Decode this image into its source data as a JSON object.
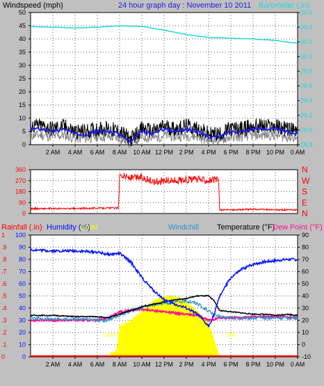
{
  "colors": {
    "bg": "#c0c0c0",
    "plot_bg": "#ffffff",
    "grid_dot": "#555555",
    "windspeed": "#000000",
    "gust": "#808080",
    "wind_avg": "#1e1ee6",
    "barometer": "#20d8d8",
    "direction": "#ff0000",
    "rainfall": "#ff0000",
    "humidity": "#0010ff",
    "solar": "#ffff00",
    "windchill": "#2a8fd0",
    "temperature": "#000000",
    "dew_point": "#ff1493"
  },
  "top_panel": {
    "title_windspeed": "Windspeed (mph)",
    "title_graph": "24 hour graph day : November 10 2011",
    "title_barometer": "Barometer (.in)"
  },
  "mid_panel": {
    "compass_labels": [
      "N",
      "W",
      "S",
      "E",
      "N"
    ]
  },
  "bottom_panel": {
    "label_rainfall": "Rainfall (.in)",
    "label_humidity": "Humidity (%)",
    "label_solar": "Solar",
    "label_windchill": "Windchill",
    "label_temperature": "Temperature (°F)",
    "label_dewpoint": "Dew Point (°F)",
    "sunrise_label": "Sun Rise",
    "sunset_label": "Set"
  },
  "chart_data": [
    {
      "type": "line",
      "title": "24 hour graph day : November 10 2011",
      "ylabel": "Windspeed (mph)",
      "y2label": "Barometer (.in)",
      "x_ticks": [
        "2 AM",
        "4 AM",
        "6 AM",
        "8 AM",
        "10 AM",
        "12 PM",
        "2 PM",
        "4 PM",
        "6 PM",
        "8 PM",
        "10 PM",
        "0 AM"
      ],
      "ylim": [
        0,
        50
      ],
      "y_ticks": [
        0,
        5,
        10,
        15,
        20,
        25,
        30,
        35,
        40,
        45,
        50
      ],
      "y2lim": [
        28.8,
        30.6
      ],
      "y2_ticks": [
        28.8,
        29.0,
        29.2,
        29.4,
        29.6,
        29.8,
        30.0,
        30.2,
        30.4,
        30.6
      ],
      "grid": true,
      "series": [
        {
          "name": "Windspeed",
          "x": [
            0,
            1,
            2,
            3,
            4,
            5,
            6,
            7,
            8,
            9,
            10,
            11,
            12,
            13,
            14,
            15,
            16,
            17,
            18,
            19,
            20,
            21,
            22,
            23,
            24
          ],
          "values": [
            6,
            6,
            5,
            6,
            4,
            4,
            5,
            5,
            4,
            1,
            5,
            4,
            6,
            5,
            6,
            5,
            3,
            3,
            5,
            5,
            6,
            6,
            6,
            5,
            4
          ]
        },
        {
          "name": "Barometer",
          "x": [
            0,
            2,
            4,
            6,
            8,
            10,
            12,
            14,
            16,
            18,
            20,
            22,
            24
          ],
          "values": [
            30.41,
            30.4,
            30.39,
            30.4,
            30.42,
            30.41,
            30.36,
            30.3,
            30.26,
            30.25,
            30.24,
            30.22,
            30.18
          ]
        }
      ]
    },
    {
      "type": "line",
      "ylabel": "Wind direction",
      "ylim": [
        0,
        360
      ],
      "y_ticks": [
        0,
        90,
        180,
        270,
        360
      ],
      "grid": true,
      "series": [
        {
          "name": "Wind direction",
          "x": [
            0,
            2,
            4,
            6,
            7.9,
            8.0,
            9,
            10,
            11,
            12,
            13,
            14,
            15,
            16,
            16.9,
            17.0,
            18,
            20,
            22,
            24
          ],
          "values": [
            40,
            40,
            40,
            45,
            45,
            320,
            290,
            300,
            260,
            270,
            270,
            280,
            280,
            275,
            275,
            30,
            30,
            35,
            30,
            30
          ]
        }
      ]
    },
    {
      "type": "line",
      "x_ticks": [
        "2 AM",
        "4 AM",
        "6 AM",
        "8 AM",
        "10 AM",
        "12 PM",
        "2 PM",
        "4 PM",
        "6 PM",
        "8 PM",
        "10 PM",
        "0 AM"
      ],
      "y_left_rain_ticks": [
        0,
        0.1,
        0.2,
        0.3,
        0.4,
        0.5,
        0.6,
        0.7,
        0.8,
        0.9,
        1
      ],
      "y_left_humidity_ticks": [
        0,
        10,
        20,
        30,
        40,
        50,
        60,
        70,
        80,
        90,
        100
      ],
      "y_right_temp_ticks": [
        -10,
        0,
        10,
        20,
        30,
        40,
        50,
        60,
        70,
        80,
        90
      ],
      "ylim": [
        -10,
        90
      ],
      "humidity_lim": [
        0,
        100
      ],
      "grid": true,
      "series": [
        {
          "name": "Humidity",
          "x": [
            0,
            2,
            4,
            6,
            7,
            8,
            9,
            10,
            11,
            12,
            13,
            14,
            15,
            15.5,
            16,
            16.5,
            17,
            18,
            19,
            20,
            21,
            22,
            23,
            24
          ],
          "values": [
            88,
            87,
            87,
            86,
            84,
            85,
            78,
            65,
            55,
            47,
            43,
            40,
            35,
            30,
            25,
            35,
            50,
            65,
            72,
            76,
            78,
            79,
            80,
            80
          ]
        },
        {
          "name": "Temperature",
          "x": [
            0,
            2,
            4,
            6,
            7,
            8,
            9,
            10,
            11,
            12,
            13,
            14,
            15,
            16,
            16.5,
            17,
            18,
            19,
            20,
            21,
            22,
            23,
            24
          ],
          "values": [
            24,
            24,
            23,
            23,
            22,
            25,
            28,
            31,
            33,
            35,
            37,
            38,
            40,
            40,
            36,
            28,
            27,
            26,
            25,
            25,
            24,
            25,
            24
          ]
        },
        {
          "name": "Windchill",
          "x": [
            0,
            2,
            4,
            6,
            7,
            8,
            9,
            10,
            11,
            12,
            13,
            14,
            15,
            15.5,
            16,
            16.5,
            17,
            18,
            19,
            20,
            21,
            22,
            23,
            24
          ],
          "values": [
            22,
            21,
            21,
            20,
            20,
            24,
            28,
            31,
            33,
            34,
            35,
            36,
            34,
            30,
            28,
            24,
            23,
            22,
            22,
            22,
            22,
            22,
            22,
            22
          ]
        },
        {
          "name": "Dew Point",
          "x": [
            0,
            2,
            4,
            6,
            7,
            8,
            9,
            10,
            11,
            12,
            13,
            14,
            15,
            16,
            17,
            18,
            19,
            20,
            21,
            22,
            23,
            24
          ],
          "values": [
            20,
            20,
            20,
            20,
            22,
            27,
            28,
            29,
            28,
            27,
            26,
            25,
            24,
            20,
            22,
            22,
            22,
            23,
            23,
            23,
            23,
            22
          ]
        },
        {
          "name": "Solar",
          "x": [
            0,
            7,
            7.3,
            7.6,
            7.8,
            8,
            8.5,
            9,
            10,
            11,
            12,
            13,
            14,
            15,
            16,
            16.5,
            16.8,
            17,
            24
          ],
          "values": [
            0,
            0,
            10,
            6,
            20,
            50,
            55,
            60,
            75,
            92,
            100,
            100,
            92,
            75,
            55,
            30,
            10,
            0,
            0
          ]
        },
        {
          "name": "Rainfall",
          "x": [
            0,
            24
          ],
          "values": [
            0,
            0
          ]
        }
      ]
    }
  ]
}
